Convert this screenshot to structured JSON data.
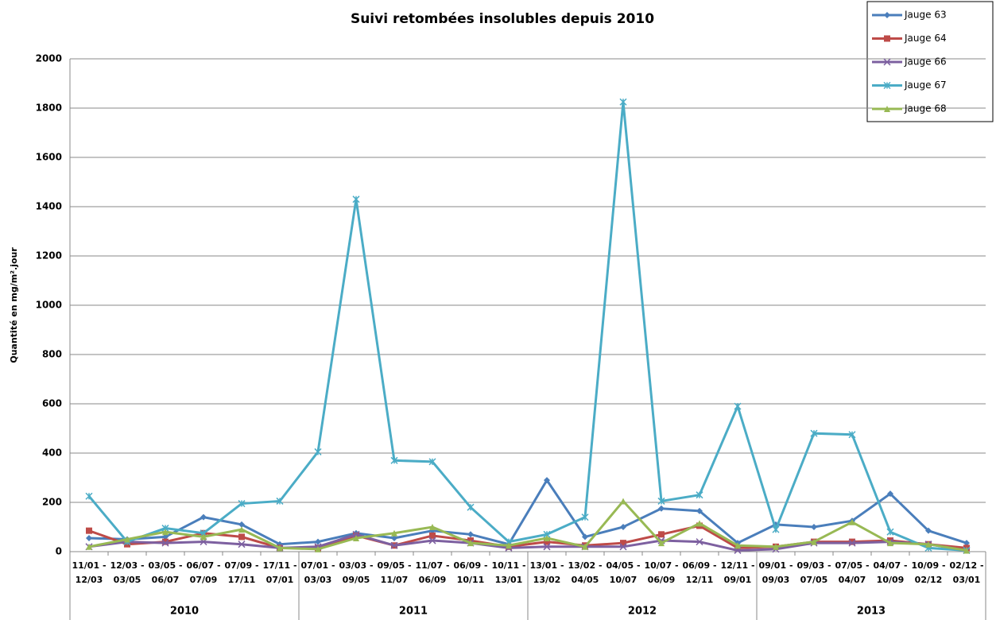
{
  "chart_data": {
    "type": "line",
    "title": "Suivi retombées insolubles depuis 2010",
    "y_label": "Quantité en mg/m².jour",
    "categories": [
      [
        "11/01 -",
        "12/03"
      ],
      [
        "12/03 -",
        "03/05"
      ],
      [
        "03/05 -",
        "06/07"
      ],
      [
        "06/07 -",
        "07/09"
      ],
      [
        "07/09 -",
        "17/11"
      ],
      [
        "17/11 -",
        "07/01"
      ],
      [
        "07/01 -",
        "03/03"
      ],
      [
        "03/03 -",
        "09/05"
      ],
      [
        "09/05 -",
        "11/07"
      ],
      [
        "11/07 -",
        "06/09"
      ],
      [
        "06/09 -",
        "10/11"
      ],
      [
        "10/11 -",
        "13/01"
      ],
      [
        "13/01 -",
        "13/02"
      ],
      [
        "13/02 -",
        "04/05"
      ],
      [
        "04/05 -",
        "10/07"
      ],
      [
        "10/07 -",
        "06/09"
      ],
      [
        "06/09 -",
        "12/11"
      ],
      [
        "12/11 -",
        "09/01"
      ],
      [
        "09/01 -",
        "09/03"
      ],
      [
        "09/03 -",
        "07/05"
      ],
      [
        "07/05 -",
        "04/07"
      ],
      [
        "04/07 -",
        "10/09"
      ],
      [
        "10/09 -",
        "02/12"
      ],
      [
        "02/12 -",
        "03/01"
      ]
    ],
    "groups": [
      {
        "label": "2010",
        "categories": 6
      },
      {
        "label": "2011",
        "categories": 6
      },
      {
        "label": "2012",
        "categories": 6
      },
      {
        "label": "2013",
        "categories": 6
      }
    ],
    "series": [
      {
        "name": "Jauge 63",
        "color": "#4a7ebb",
        "marker": "diamond",
        "values": [
          55,
          50,
          60,
          140,
          110,
          30,
          40,
          75,
          55,
          85,
          70,
          30,
          290,
          60,
          100,
          175,
          165,
          35,
          110,
          100,
          125,
          235,
          85,
          35
        ]
      },
      {
        "name": "Jauge 64",
        "color": "#be4b48",
        "marker": "square",
        "values": [
          85,
          30,
          40,
          75,
          60,
          15,
          15,
          65,
          25,
          65,
          45,
          20,
          40,
          25,
          35,
          70,
          105,
          15,
          20,
          40,
          40,
          45,
          30,
          15
        ]
      },
      {
        "name": "Jauge 66",
        "color": "#7d60a0",
        "marker": "x",
        "values": [
          20,
          40,
          35,
          40,
          30,
          15,
          20,
          70,
          25,
          45,
          35,
          15,
          20,
          20,
          20,
          45,
          40,
          5,
          10,
          35,
          35,
          40,
          30,
          5
        ]
      },
      {
        "name": "Jauge 67",
        "color": "#4bacc6",
        "marker": "star",
        "values": [
          225,
          40,
          95,
          75,
          195,
          205,
          405,
          1430,
          370,
          365,
          180,
          40,
          70,
          140,
          1825,
          205,
          230,
          590,
          90,
          480,
          475,
          80,
          15,
          5
        ]
      },
      {
        "name": "Jauge 68",
        "color": "#98b954",
        "marker": "triangle",
        "values": [
          20,
          50,
          80,
          60,
          90,
          15,
          10,
          55,
          75,
          100,
          35,
          25,
          55,
          20,
          205,
          35,
          115,
          25,
          20,
          40,
          120,
          35,
          30,
          5
        ]
      }
    ],
    "ylim": [
      0,
      2000
    ],
    "yticks": [
      0,
      200,
      400,
      600,
      800,
      1000,
      1200,
      1400,
      1600,
      1800,
      2000
    ],
    "grid": true,
    "legend": "top-right"
  }
}
